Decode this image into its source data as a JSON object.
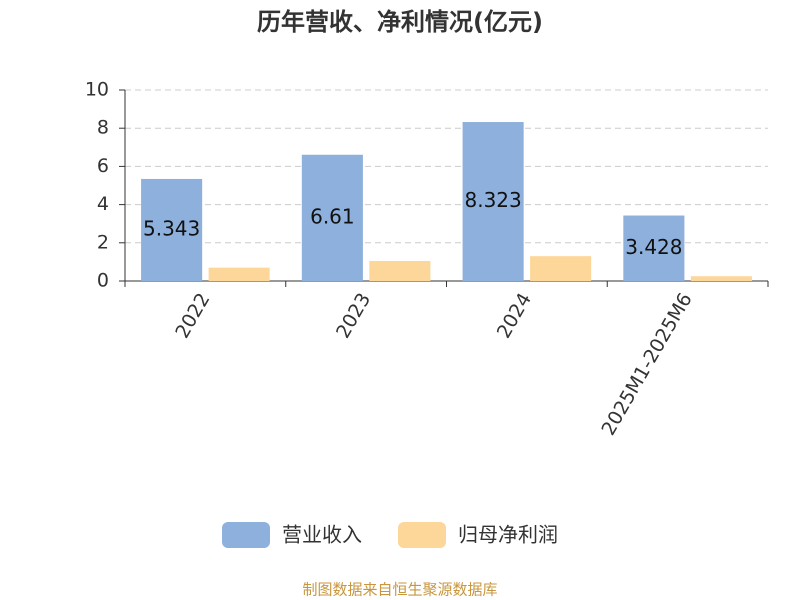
{
  "chart_data": {
    "type": "bar",
    "title": "历年营收、净利情况(亿元)",
    "categories": [
      "2022",
      "2023",
      "2024",
      "2025M1-2025M6"
    ],
    "series": [
      {
        "name": "营业收入",
        "color": "#8eb0dc",
        "values": [
          5.343,
          6.61,
          8.323,
          3.428
        ],
        "labels": true
      },
      {
        "name": "归母净利润",
        "color": "#fdd699",
        "values": [
          0.7,
          1.05,
          1.3,
          0.25
        ],
        "labels": false
      }
    ],
    "ylim": [
      0,
      10
    ],
    "yticks": [
      0,
      2,
      4,
      6,
      8,
      10
    ],
    "grid": true,
    "legend": "bottom",
    "source": "制图数据来自恒生聚源数据库"
  }
}
